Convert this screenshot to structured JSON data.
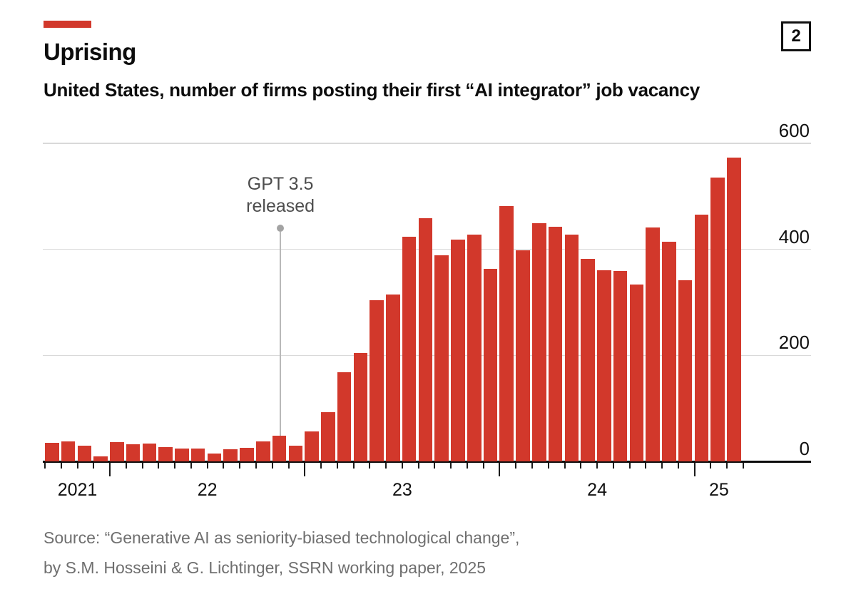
{
  "badge": "2",
  "header": {
    "title": "Uprising",
    "subtitle": "United States, number of firms posting their first “AI integrator” job vacancy"
  },
  "source": {
    "line1": "Source: “Generative AI as seniority-biased technological change”,",
    "line2": "by S.M. Hosseini & G. Lichtinger, SSRN working paper, 2025"
  },
  "chart_data": {
    "type": "bar",
    "title": "Uprising",
    "subtitle": "United States, number of firms posting their first “AI integrator” job vacancy",
    "x": [
      "2021-09",
      "2021-10",
      "2021-11",
      "2021-12",
      "2022-01",
      "2022-02",
      "2022-03",
      "2022-04",
      "2022-05",
      "2022-06",
      "2022-07",
      "2022-08",
      "2022-09",
      "2022-10",
      "2022-11",
      "2022-12",
      "2023-01",
      "2023-02",
      "2023-03",
      "2023-04",
      "2023-05",
      "2023-06",
      "2023-07",
      "2023-08",
      "2023-09",
      "2023-10",
      "2023-11",
      "2023-12",
      "2024-01",
      "2024-02",
      "2024-03",
      "2024-04",
      "2024-05",
      "2024-06",
      "2024-07",
      "2024-08",
      "2024-09",
      "2024-10",
      "2024-11",
      "2024-12",
      "2025-01",
      "2025-02",
      "2025-03"
    ],
    "values": [
      35,
      38,
      30,
      10,
      36,
      32,
      34,
      27,
      24,
      24,
      15,
      23,
      26,
      38,
      49,
      30,
      56,
      93,
      168,
      204,
      304,
      315,
      424,
      459,
      389,
      418,
      428,
      363,
      481,
      398,
      449,
      443,
      428,
      382,
      360,
      359,
      334,
      441,
      414,
      342,
      465,
      535,
      573
    ],
    "ylim": [
      0,
      600
    ],
    "yticks": [
      600,
      400,
      200,
      0
    ],
    "grid": "horizontal",
    "legend": "none",
    "xlabel": "",
    "ylabel": "",
    "year_labels": [
      {
        "text": "2021",
        "center_month": 2
      },
      {
        "text": "22",
        "center_month": 10
      },
      {
        "text": "23",
        "center_month": 22
      },
      {
        "text": "24",
        "center_month": 34
      },
      {
        "text": "25",
        "center_month": 41.5
      }
    ],
    "annotation": {
      "line1": "GPT 3.5",
      "line2": "released",
      "month_boundary": 14.5,
      "points_to_value": 49
    },
    "colors": {
      "bar": "#d2382b",
      "accent": "#d2382b",
      "grid": "#d9d9d9",
      "axis": "#111111",
      "annotation_text": "#4d4d4d",
      "annotation_line": "#b9b9b9",
      "annotation_dot": "#a3a3a3",
      "source_text": "#6f6f6f"
    }
  }
}
